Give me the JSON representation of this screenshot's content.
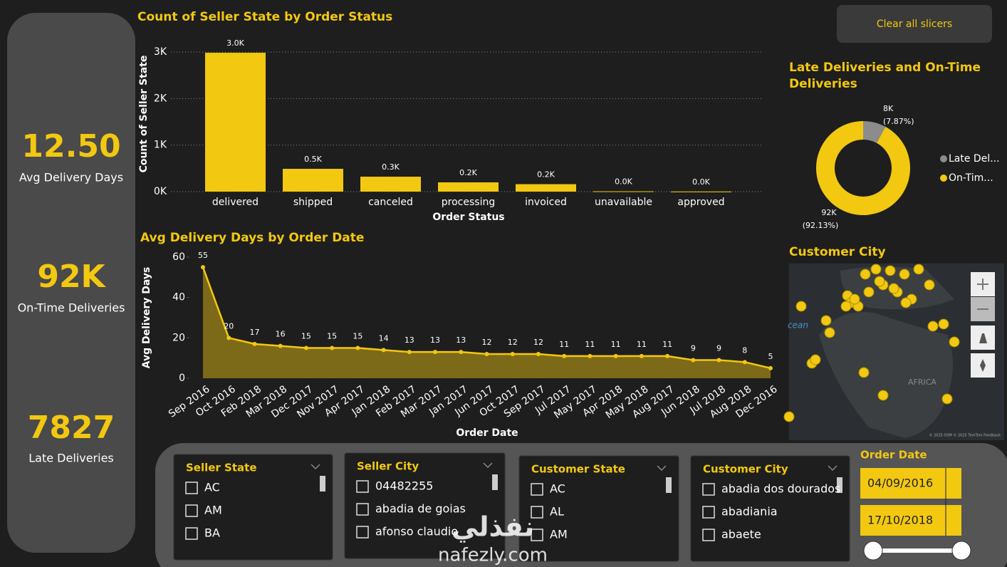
{
  "kpis": [
    {
      "value": "12.50",
      "label": "Avg Delivery Days"
    },
    {
      "value": "92K",
      "label": "On-Time Deliveries"
    },
    {
      "value": "7827",
      "label": "Late Deliveries"
    }
  ],
  "clear_button": "Clear all slicers",
  "chart_data": [
    {
      "type": "bar",
      "title": "Count of Seller State by Order Status",
      "x_label": "Order Status",
      "y_label": "Count of Seller State",
      "categories": [
        "delivered",
        "shipped",
        "canceled",
        "processing",
        "invoiced",
        "unavailable",
        "approved"
      ],
      "values": [
        2985,
        490,
        321,
        199,
        160,
        7,
        2
      ],
      "value_labels": [
        "3.0K",
        "0.5K",
        "0.3K",
        "0.2K",
        "0.2K",
        "0.0K",
        "0.0K"
      ],
      "color": "#f2c811",
      "ylim": [
        0,
        3200
      ],
      "yticks": [
        {
          "value": 0,
          "label": "0K"
        },
        {
          "value": 1000,
          "label": "1K"
        },
        {
          "value": 2000,
          "label": "2K"
        },
        {
          "value": 3000,
          "label": "3K"
        }
      ],
      "grid": true
    },
    {
      "type": "area",
      "title": "Avg Delivery Days by Order Date",
      "x_label": "Order Date",
      "y_label": "Avg Delivery Days",
      "categories": [
        "Sep 2016",
        "Oct 2016",
        "Feb 2018",
        "Mar 2018",
        "Dec 2017",
        "Nov 2017",
        "Apr 2017",
        "Jan 2018",
        "Feb 2017",
        "Mar 2017",
        "Jan 2017",
        "Jun 2017",
        "Oct 2017",
        "Sep 2017",
        "Jul 2017",
        "May 2017",
        "Apr 2018",
        "May 2018",
        "Aug 2017",
        "Jun 2018",
        "Jul 2018",
        "Aug 2018",
        "Dec 2016"
      ],
      "values": [
        55,
        20,
        17,
        16,
        15,
        15,
        15,
        14,
        13,
        13,
        13,
        12,
        12,
        12,
        11,
        11,
        11,
        11,
        11,
        9,
        9,
        8,
        5
      ],
      "color": "#f2c811",
      "ylim": [
        0,
        60
      ],
      "yticks": [
        0,
        20,
        40,
        60
      ],
      "grid": false
    },
    {
      "type": "donut",
      "title": "Late Deliveries and On-Time Deliveries",
      "title_lines": [
        "Late Deliveries and On-Time",
        "Deliveries"
      ],
      "categories": [
        "Late Del...",
        "On-Tim..."
      ],
      "values": [
        7827,
        91614
      ],
      "value_labels": [
        "8K",
        "92K"
      ],
      "percent_labels": [
        "(7.87%)",
        "(92.13%)"
      ],
      "colors": [
        "#8c8c8c",
        "#f2c811"
      ]
    }
  ],
  "map": {
    "title": "Customer City",
    "labels": [
      "cean",
      "AFRICA"
    ],
    "credit": "© 2025 OSM  © 2025 TomTom  Feedback"
  },
  "slicers": [
    {
      "title": "Seller State",
      "items": [
        "AC",
        "AM",
        "BA"
      ]
    },
    {
      "title": "Seller City",
      "items": [
        "04482255",
        "abadia de goias",
        "afonso claudio"
      ]
    },
    {
      "title": "Customer State",
      "items": [
        "AC",
        "AL",
        "AM"
      ]
    },
    {
      "title": "Customer City",
      "items": [
        "abadia dos dourados",
        "abadiania",
        "abaete"
      ]
    }
  ],
  "date_slicer": {
    "title": "Order Date",
    "start": "04/09/2016",
    "end": "17/10/2018"
  },
  "watermark": {
    "arabic": "نفذلي",
    "latin": "nafezly.com"
  }
}
